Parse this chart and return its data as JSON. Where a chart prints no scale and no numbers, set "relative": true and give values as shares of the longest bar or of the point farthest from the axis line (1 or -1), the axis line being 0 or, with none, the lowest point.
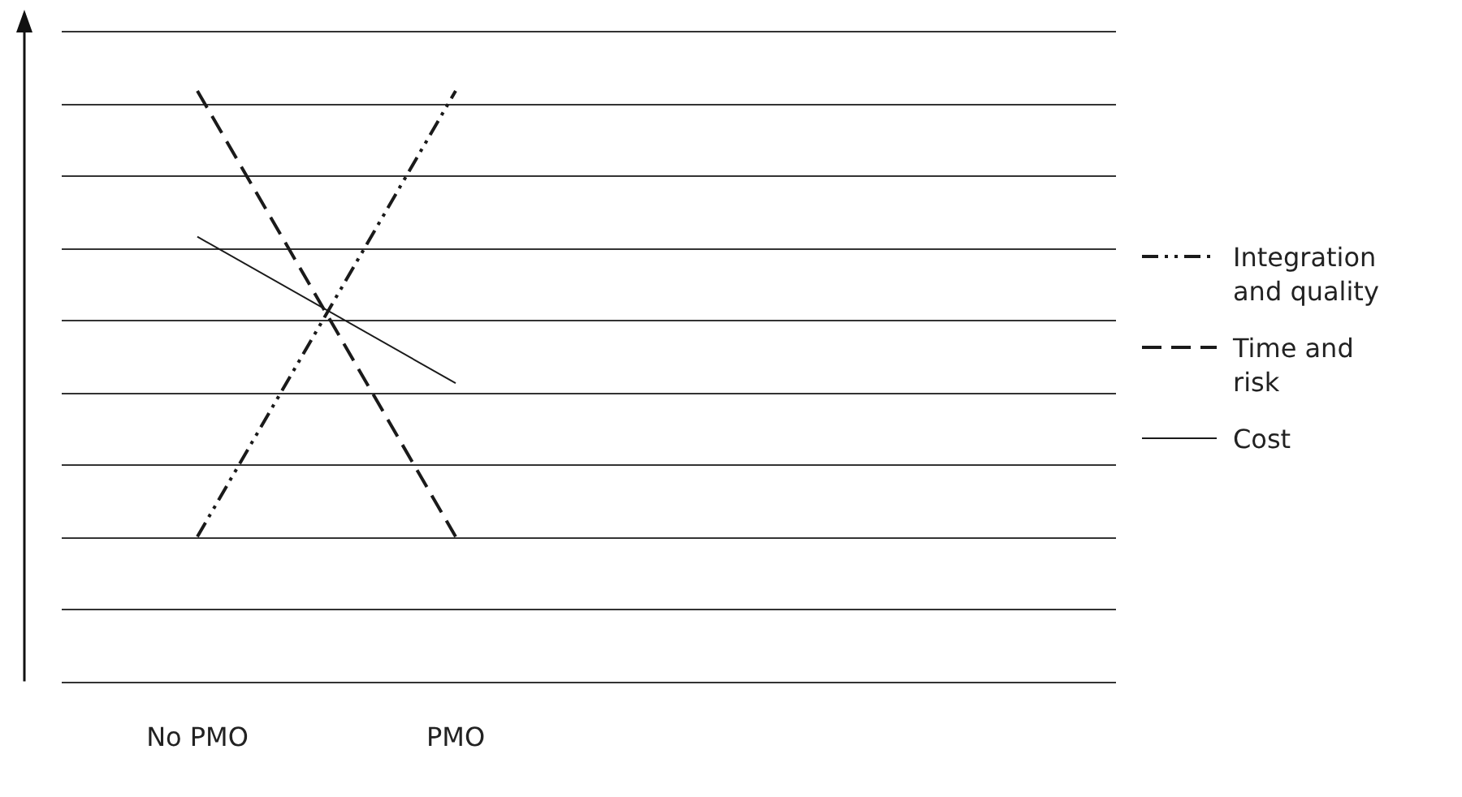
{
  "chart_data": {
    "type": "line",
    "relative": true,
    "categories": [
      "No PMO",
      "PMO"
    ],
    "series": [
      {
        "name": "Integration and quality",
        "color": "#1a1a1a",
        "line_style": "dotted",
        "values": [
          0.245,
          1
        ]
      },
      {
        "name": "Time and risk",
        "color": "#1a1a1a",
        "line_style": "dashed",
        "values": [
          1,
          0.245
        ]
      },
      {
        "name": "Cost",
        "color": "#1a1a1a",
        "line_style": "solid",
        "values": [
          0.753,
          0.505
        ]
      }
    ],
    "grid": "y",
    "legend": "right",
    "marker": "none"
  }
}
